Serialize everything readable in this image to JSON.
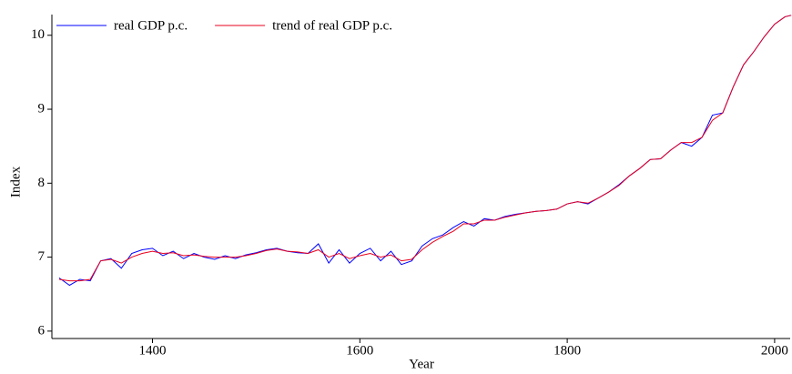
{
  "chart_data": {
    "type": "line",
    "xlabel": "Year",
    "ylabel": "Index",
    "x": [
      1310,
      1320,
      1330,
      1340,
      1350,
      1360,
      1370,
      1380,
      1390,
      1400,
      1410,
      1420,
      1430,
      1440,
      1450,
      1460,
      1470,
      1480,
      1490,
      1500,
      1510,
      1520,
      1530,
      1540,
      1550,
      1560,
      1570,
      1580,
      1590,
      1600,
      1610,
      1620,
      1630,
      1640,
      1650,
      1660,
      1670,
      1680,
      1690,
      1700,
      1710,
      1720,
      1730,
      1740,
      1750,
      1760,
      1770,
      1780,
      1790,
      1800,
      1810,
      1820,
      1830,
      1840,
      1850,
      1860,
      1870,
      1880,
      1890,
      1900,
      1910,
      1920,
      1930,
      1940,
      1950,
      1960,
      1970,
      1980,
      1990,
      2000,
      2010,
      2016
    ],
    "series": [
      {
        "name": "real GDP p.c.",
        "color": "#0000ff",
        "values": [
          6.72,
          6.62,
          6.7,
          6.68,
          6.95,
          6.98,
          6.85,
          7.05,
          7.1,
          7.12,
          7.02,
          7.08,
          6.98,
          7.05,
          7.0,
          6.97,
          7.02,
          6.98,
          7.03,
          7.06,
          7.1,
          7.12,
          7.08,
          7.06,
          7.05,
          7.18,
          6.92,
          7.1,
          6.92,
          7.05,
          7.12,
          6.95,
          7.08,
          6.9,
          6.95,
          7.15,
          7.25,
          7.3,
          7.4,
          7.48,
          7.42,
          7.52,
          7.5,
          7.55,
          7.58,
          7.6,
          7.62,
          7.63,
          7.65,
          7.72,
          7.75,
          7.72,
          7.8,
          7.88,
          7.98,
          8.1,
          8.2,
          8.32,
          8.33,
          8.45,
          8.55,
          8.5,
          8.62,
          8.92,
          8.95,
          9.3,
          9.6,
          9.78,
          9.98,
          10.15,
          10.25,
          10.27
        ]
      },
      {
        "name": "trend of real GDP p.c.",
        "color": "#e8001c",
        "values": [
          6.7,
          6.68,
          6.68,
          6.7,
          6.95,
          6.97,
          6.92,
          7.0,
          7.05,
          7.08,
          7.05,
          7.06,
          7.02,
          7.03,
          7.01,
          7.0,
          7.0,
          7.0,
          7.02,
          7.05,
          7.09,
          7.11,
          7.08,
          7.07,
          7.05,
          7.1,
          7.0,
          7.05,
          6.98,
          7.02,
          7.05,
          7.0,
          7.03,
          6.95,
          6.97,
          7.1,
          7.2,
          7.28,
          7.35,
          7.45,
          7.45,
          7.5,
          7.5,
          7.54,
          7.57,
          7.6,
          7.62,
          7.63,
          7.65,
          7.72,
          7.75,
          7.73,
          7.8,
          7.88,
          7.97,
          8.1,
          8.2,
          8.32,
          8.33,
          8.45,
          8.55,
          8.55,
          8.62,
          8.85,
          8.95,
          9.3,
          9.6,
          9.78,
          9.98,
          10.15,
          10.25,
          10.27
        ]
      }
    ],
    "xlim": [
      1303,
      2015
    ],
    "xticks": [
      1400,
      1600,
      1800,
      2000
    ],
    "ylim": [
      5.9,
      10.28
    ],
    "yticks": [
      6,
      7,
      8,
      9,
      10
    ],
    "legend": "top-left"
  }
}
